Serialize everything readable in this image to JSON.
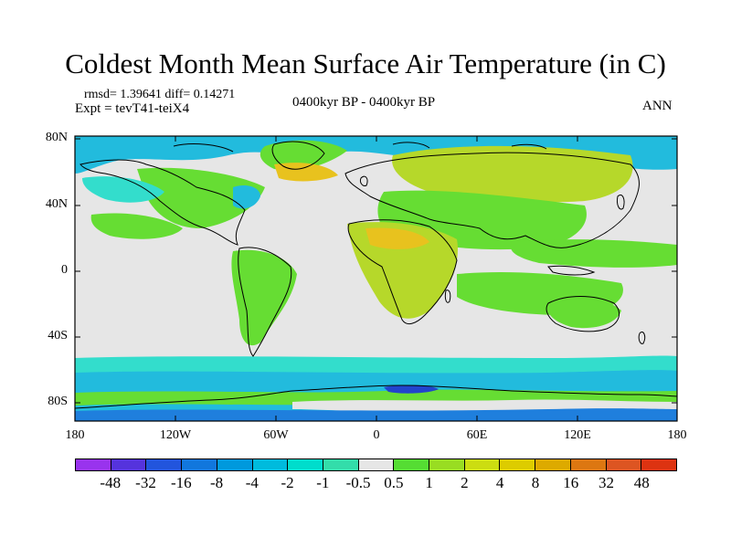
{
  "title": "Coldest Month Mean Surface Air Temperature (in C)",
  "stats": "rmsd= 1.39641  diff= 0.14271",
  "experiment": "Expt = tevT41-teiX4",
  "period": "0400kyr BP - 0400kyr BP",
  "season": "ANN",
  "map": {
    "lat_labels": [
      "80N",
      "40N",
      "0",
      "40S",
      "80S"
    ],
    "lon_labels": [
      "180",
      "120W",
      "60W",
      "0",
      "60E",
      "120E",
      "180"
    ],
    "palette": {
      "ocean_neutral": "#e6e6e6",
      "pos_small": "#66dd33",
      "pos_mid": "#b6d82a",
      "pos_high": "#e8c21e",
      "neg_small": "#33ddcc",
      "neg_mid": "#22bbdd",
      "neg_high": "#1f7fdd",
      "neg_strong": "#2244cc",
      "coast": "#000000"
    }
  },
  "colorbar": {
    "colors": [
      "#9933ee",
      "#5533dd",
      "#2255dd",
      "#1177dd",
      "#0099dd",
      "#00bbdd",
      "#00ddcc",
      "#33ddaa",
      "#e6e6e6",
      "#55dd33",
      "#99dd22",
      "#ccdd11",
      "#ddcc00",
      "#ddaa00",
      "#dd7711",
      "#dd5522",
      "#dd3311"
    ],
    "labels": [
      "-48",
      "-32",
      "-16",
      "-8",
      "-4",
      "-2",
      "-1",
      "-0.5",
      "0.5",
      "1",
      "2",
      "4",
      "8",
      "16",
      "32",
      "48"
    ]
  }
}
